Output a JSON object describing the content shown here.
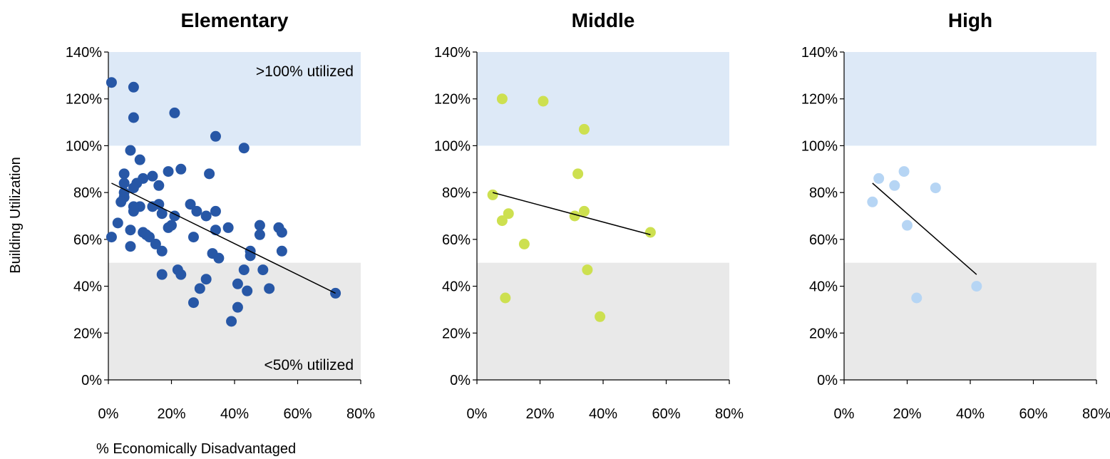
{
  "y_axis_label": "Building Utilization",
  "x_axis_label": "% Economically Disadvantaged",
  "chart_data": [
    {
      "type": "scatter",
      "title": "Elementary",
      "xlim": [
        0,
        80
      ],
      "ylim": [
        0,
        140
      ],
      "x_ticks": [
        "0%",
        "20%",
        "40%",
        "60%",
        "80%"
      ],
      "y_ticks": [
        "0%",
        "20%",
        "40%",
        "60%",
        "80%",
        "100%",
        "120%",
        "140%"
      ],
      "bands": [
        {
          "from": 100,
          "to": 140,
          "color": "#dde9f7",
          "label": ">100% utilized",
          "label_pos": "top-right"
        },
        {
          "from": 0,
          "to": 50,
          "color": "#e9e9e9",
          "label": "<50% utilized",
          "label_pos": "bottom-right"
        }
      ],
      "point_color": "#2757a6",
      "points": [
        [
          1,
          127
        ],
        [
          8,
          125
        ],
        [
          8,
          112
        ],
        [
          21,
          114
        ],
        [
          34,
          104
        ],
        [
          43,
          99
        ],
        [
          7,
          98
        ],
        [
          10,
          94
        ],
        [
          23,
          90
        ],
        [
          19,
          89
        ],
        [
          32,
          88
        ],
        [
          5,
          88
        ],
        [
          11,
          86
        ],
        [
          14,
          87
        ],
        [
          9,
          84
        ],
        [
          5,
          84
        ],
        [
          16,
          83
        ],
        [
          8,
          82
        ],
        [
          5,
          80
        ],
        [
          5,
          78
        ],
        [
          4,
          76
        ],
        [
          26,
          75
        ],
        [
          16,
          75
        ],
        [
          14,
          74
        ],
        [
          10,
          74
        ],
        [
          8,
          74
        ],
        [
          8,
          72
        ],
        [
          28,
          72
        ],
        [
          34,
          72
        ],
        [
          17,
          71
        ],
        [
          21,
          70
        ],
        [
          31,
          70
        ],
        [
          3,
          67
        ],
        [
          20,
          66
        ],
        [
          19,
          65
        ],
        [
          38,
          65
        ],
        [
          48,
          66
        ],
        [
          54,
          65
        ],
        [
          7,
          64
        ],
        [
          34,
          64
        ],
        [
          11,
          63
        ],
        [
          12,
          62
        ],
        [
          48,
          62
        ],
        [
          55,
          63
        ],
        [
          1,
          61
        ],
        [
          13,
          61
        ],
        [
          27,
          61
        ],
        [
          15,
          58
        ],
        [
          7,
          57
        ],
        [
          17,
          55
        ],
        [
          45,
          55
        ],
        [
          55,
          55
        ],
        [
          33,
          54
        ],
        [
          35,
          52
        ],
        [
          45,
          53
        ],
        [
          17,
          45
        ],
        [
          22,
          47
        ],
        [
          23,
          45
        ],
        [
          43,
          47
        ],
        [
          49,
          47
        ],
        [
          31,
          43
        ],
        [
          41,
          41
        ],
        [
          29,
          39
        ],
        [
          44,
          38
        ],
        [
          51,
          39
        ],
        [
          72,
          37
        ],
        [
          27,
          33
        ],
        [
          41,
          31
        ],
        [
          39,
          25
        ]
      ],
      "trendline": {
        "from": [
          1,
          84
        ],
        "to": [
          72,
          37
        ]
      }
    },
    {
      "type": "scatter",
      "title": "Middle",
      "xlim": [
        0,
        80
      ],
      "ylim": [
        0,
        140
      ],
      "x_ticks": [
        "0%",
        "20%",
        "40%",
        "60%",
        "80%"
      ],
      "y_ticks": [
        "0%",
        "20%",
        "40%",
        "60%",
        "80%",
        "100%",
        "120%",
        "140%"
      ],
      "bands": [
        {
          "from": 100,
          "to": 140,
          "color": "#dde9f7",
          "label": "",
          "label_pos": ""
        },
        {
          "from": 0,
          "to": 50,
          "color": "#e9e9e9",
          "label": "",
          "label_pos": ""
        }
      ],
      "point_color": "#cde050",
      "points": [
        [
          8,
          120
        ],
        [
          21,
          119
        ],
        [
          34,
          107
        ],
        [
          32,
          88
        ],
        [
          5,
          79
        ],
        [
          34,
          72
        ],
        [
          10,
          71
        ],
        [
          31,
          70
        ],
        [
          8,
          68
        ],
        [
          55,
          63
        ],
        [
          15,
          58
        ],
        [
          35,
          47
        ],
        [
          9,
          35
        ],
        [
          39,
          27
        ]
      ],
      "trendline": {
        "from": [
          5,
          80
        ],
        "to": [
          55,
          62
        ]
      }
    },
    {
      "type": "scatter",
      "title": "High",
      "xlim": [
        0,
        80
      ],
      "ylim": [
        0,
        140
      ],
      "x_ticks": [
        "0%",
        "20%",
        "40%",
        "60%",
        "80%"
      ],
      "y_ticks": [
        "0%",
        "20%",
        "40%",
        "60%",
        "80%",
        "100%",
        "120%",
        "140%"
      ],
      "bands": [
        {
          "from": 100,
          "to": 140,
          "color": "#dde9f7",
          "label": "",
          "label_pos": ""
        },
        {
          "from": 0,
          "to": 50,
          "color": "#e9e9e9",
          "label": "",
          "label_pos": ""
        }
      ],
      "point_color": "#b6d5f4",
      "points": [
        [
          11,
          86
        ],
        [
          19,
          89
        ],
        [
          16,
          83
        ],
        [
          29,
          82
        ],
        [
          9,
          76
        ],
        [
          20,
          66
        ],
        [
          42,
          40
        ],
        [
          23,
          35
        ]
      ],
      "trendline": {
        "from": [
          9,
          84
        ],
        "to": [
          42,
          45
        ]
      }
    }
  ]
}
